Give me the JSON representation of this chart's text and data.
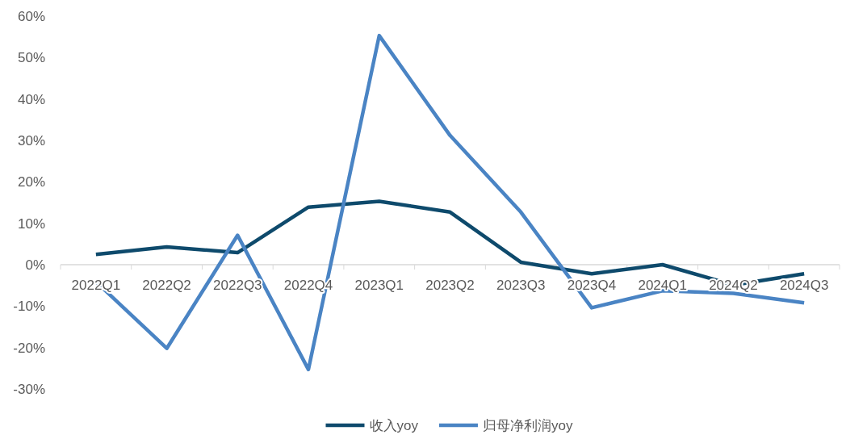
{
  "chart_data": {
    "type": "line",
    "categories": [
      "2022Q1",
      "2022Q2",
      "2022Q3",
      "2022Q4",
      "2023Q1",
      "2023Q2",
      "2023Q3",
      "2023Q4",
      "2024Q1",
      "2024Q2",
      "2024Q3"
    ],
    "series": [
      {
        "name": "收入yoy",
        "color": "#0e4a6c",
        "values": [
          2.5,
          4.3,
          2.9,
          13.9,
          15.3,
          12.7,
          0.6,
          -2.2,
          0,
          -4.9,
          -2.2
        ]
      },
      {
        "name": "归母净利润yoy",
        "color": "#4a84c4",
        "values": [
          -4.1,
          -20.2,
          7.1,
          -25.3,
          55.3,
          31.2,
          12.7,
          -10.4,
          -6.3,
          -6.9,
          -9.2
        ]
      }
    ],
    "ylim": [
      -30,
      60
    ],
    "yticks": [
      {
        "value": -30,
        "label": "-30%"
      },
      {
        "value": -20,
        "label": "-20%"
      },
      {
        "value": -10,
        "label": "-10%"
      },
      {
        "value": 0,
        "label": "0%"
      },
      {
        "value": 10,
        "label": "10%"
      },
      {
        "value": 20,
        "label": "20%"
      },
      {
        "value": 30,
        "label": "30%"
      },
      {
        "value": 40,
        "label": "40%"
      },
      {
        "value": 50,
        "label": "50%"
      },
      {
        "value": 60,
        "label": "60%"
      }
    ],
    "grid": false,
    "legend": "bottom",
    "marker": "none",
    "line_style": "solid"
  }
}
